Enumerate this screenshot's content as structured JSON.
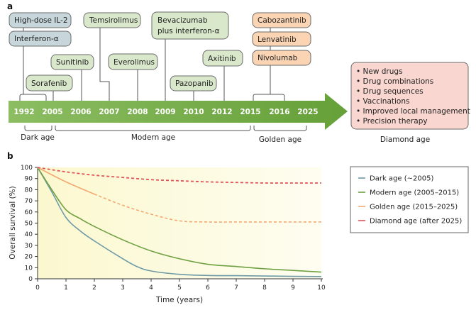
{
  "panel_a": {
    "label": "a",
    "years": [
      "1992",
      "2005",
      "2006",
      "2007",
      "2008",
      "2009",
      "2010",
      "2012",
      "2015",
      "2016",
      "2025"
    ],
    "drugs": {
      "il2": "High-dose IL-2",
      "ifn": "Interferon-α",
      "sorafenib": "Sorafenib",
      "sunitinib": "Sunitinib",
      "temsirolimus": "Temsirolimus",
      "everolimus": "Everolimus",
      "bevacizumab_1": "Bevacizumab",
      "bevacizumab_2": "plus interferon-α",
      "pazopanib": "Pazopanib",
      "axitinib": "Axitinib",
      "cabozantinib": "Cabozantinib",
      "lenvatinib": "Lenvatinib",
      "nivolumab": "Nivolumab"
    },
    "ages": [
      "Dark age",
      "Modern age",
      "Golden age",
      "Diamond age"
    ],
    "diamond_items": [
      "New drugs",
      "Drug combinations",
      "Drug sequences",
      "Vaccinations",
      "Improved local management",
      "Precision therapy"
    ],
    "colors": {
      "dark": "#c6d6da",
      "modern": "#d9e8cb",
      "golden": "#fad4b3",
      "diamond": "#f9d6cf",
      "arrow": "#77aa45"
    }
  },
  "chart_data": {
    "type": "line",
    "panel_label": "b",
    "xlabel": "Time (years)",
    "ylabel": "Overall survival (%)",
    "xlim": [
      0,
      10
    ],
    "ylim": [
      0,
      100
    ],
    "xticks": [
      "0",
      "1",
      "2",
      "3",
      "4",
      "5",
      "6",
      "7",
      "8",
      "9",
      "10"
    ],
    "yticks": [
      "0",
      "10",
      "20",
      "30",
      "40",
      "50",
      "60",
      "70",
      "80",
      "90",
      "100"
    ],
    "legend_position": "right",
    "series": [
      {
        "name": "Dark age (~2005)",
        "color": "#6d9aa6",
        "style": "solid",
        "x": [
          0,
          0.5,
          1,
          1.5,
          2,
          3,
          3.5,
          4,
          5,
          6,
          7,
          8,
          9,
          10
        ],
        "y": [
          100,
          78,
          55,
          43,
          34,
          18,
          11,
          7,
          4,
          3,
          2.8,
          2.5,
          2.2,
          2
        ]
      },
      {
        "name": "Modern age (2005–2015)",
        "color": "#6fa142",
        "style": "solid",
        "x": [
          0,
          0.5,
          1,
          1.5,
          2,
          3,
          4,
          5,
          6,
          7,
          8,
          9,
          10
        ],
        "y": [
          100,
          80,
          62,
          54,
          47,
          35,
          25,
          18,
          13,
          11,
          9,
          7.5,
          6
        ]
      },
      {
        "name": "Golden age (2015–2025)",
        "color": "#f3a872",
        "style": "solid-then-dashed",
        "x": [
          0,
          1,
          2,
          3,
          4,
          5,
          6,
          7,
          8,
          9,
          10
        ],
        "y": [
          100,
          87,
          76,
          66,
          58,
          52,
          51,
          51,
          51,
          51,
          51
        ],
        "dashed_from": 2
      },
      {
        "name": "Diamond age (after 2025)",
        "color": "#e0545a",
        "style": "dashed",
        "x": [
          0,
          1,
          2,
          3,
          4,
          5,
          6,
          7,
          8,
          9,
          10
        ],
        "y": [
          100,
          96,
          93,
          91,
          89,
          88,
          87,
          86.5,
          86,
          86,
          86
        ]
      }
    ]
  }
}
